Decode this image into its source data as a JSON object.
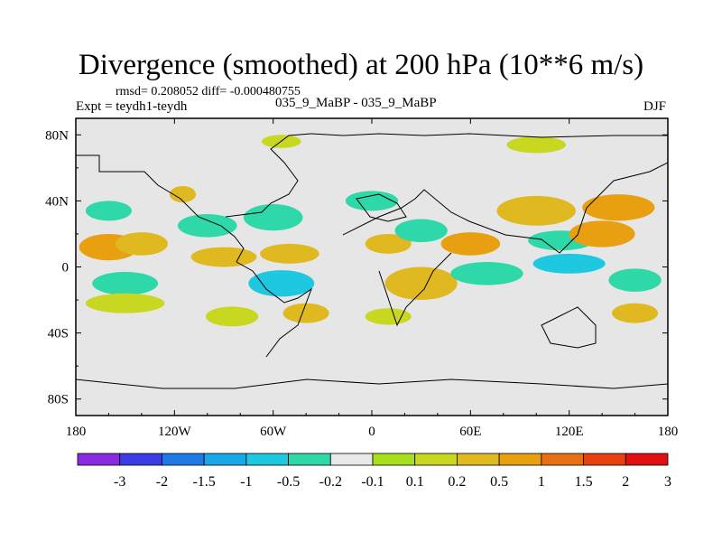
{
  "title": "Divergence (smoothed) at 200 hPa (10**6 m/s)",
  "stats": "rmsd= 0.208052 diff= -0.000480755",
  "expt": "Expt = teydh1-teydh",
  "cases": "035_9_MaBP - 035_9_MaBP",
  "season": "DJF",
  "chart_data": {
    "type": "heatmap",
    "title": "Divergence (smoothed) at 200 hPa (10**6 m/s)",
    "xlabel": "",
    "ylabel": "",
    "xlim": [
      -180,
      180
    ],
    "ylim": [
      -90,
      90
    ],
    "x_ticks": [
      {
        "value": -180,
        "label": "180"
      },
      {
        "value": -120,
        "label": "120W"
      },
      {
        "value": -60,
        "label": "60W"
      },
      {
        "value": 0,
        "label": "0"
      },
      {
        "value": 60,
        "label": "60E"
      },
      {
        "value": 120,
        "label": "120E"
      },
      {
        "value": 180,
        "label": "180"
      }
    ],
    "y_ticks": [
      {
        "value": 80,
        "label": "80N"
      },
      {
        "value": 40,
        "label": "40N"
      },
      {
        "value": 0,
        "label": "0"
      },
      {
        "value": -40,
        "label": "40S"
      },
      {
        "value": -80,
        "label": "80S"
      }
    ],
    "colorbar": {
      "colors": [
        "#8a2be2",
        "#3b3be8",
        "#1f7ae8",
        "#18a8e8",
        "#1ec8e0",
        "#2ed8a8",
        "#e8e8e8",
        "#a8e020",
        "#c8d820",
        "#e0b820",
        "#e8a010",
        "#e87010",
        "#e84010",
        "#e01010"
      ],
      "levels": [
        "-3",
        "-2",
        "-1.5",
        "-1",
        "-0.5",
        "-0.2",
        "-0.1",
        "0.1",
        "0.2",
        "0.5",
        "1",
        "1.5",
        "2",
        "3"
      ]
    },
    "features": [
      {
        "lon": -160,
        "lat": 34,
        "rlon": 14,
        "rlat": 6,
        "value": -0.5
      },
      {
        "lon": -160,
        "lat": 12,
        "rlon": 18,
        "rlat": 8,
        "value": 0.7
      },
      {
        "lon": -140,
        "lat": 14,
        "rlon": 16,
        "rlat": 7,
        "value": 0.4
      },
      {
        "lon": -150,
        "lat": -10,
        "rlon": 20,
        "rlat": 7,
        "value": -0.5
      },
      {
        "lon": -150,
        "lat": -22,
        "rlon": 24,
        "rlat": 6,
        "value": 0.15
      },
      {
        "lon": -115,
        "lat": 44,
        "rlon": 8,
        "rlat": 5,
        "value": 0.2
      },
      {
        "lon": -100,
        "lat": 25,
        "rlon": 18,
        "rlat": 7,
        "value": -0.4
      },
      {
        "lon": -90,
        "lat": 6,
        "rlon": 20,
        "rlat": 6,
        "value": 0.3
      },
      {
        "lon": -85,
        "lat": -30,
        "rlon": 16,
        "rlat": 6,
        "value": 0.15
      },
      {
        "lon": -60,
        "lat": 30,
        "rlon": 18,
        "rlat": 8,
        "value": -0.4
      },
      {
        "lon": -50,
        "lat": 8,
        "rlon": 18,
        "rlat": 6,
        "value": 0.3
      },
      {
        "lon": -55,
        "lat": -10,
        "rlon": 20,
        "rlat": 8,
        "value": -0.6
      },
      {
        "lon": -40,
        "lat": -28,
        "rlon": 14,
        "rlat": 6,
        "value": 0.2
      },
      {
        "lon": -55,
        "lat": 76,
        "rlon": 12,
        "rlat": 4,
        "value": 0.15
      },
      {
        "lon": 0,
        "lat": 40,
        "rlon": 16,
        "rlat": 6,
        "value": -0.3
      },
      {
        "lon": 10,
        "lat": 14,
        "rlon": 14,
        "rlat": 6,
        "value": 0.4
      },
      {
        "lon": 30,
        "lat": 22,
        "rlon": 16,
        "rlat": 7,
        "value": -0.5
      },
      {
        "lon": 30,
        "lat": -10,
        "rlon": 22,
        "rlat": 10,
        "value": 0.2
      },
      {
        "lon": 10,
        "lat": -30,
        "rlon": 14,
        "rlat": 5,
        "value": 0.15
      },
      {
        "lon": 60,
        "lat": 14,
        "rlon": 18,
        "rlat": 7,
        "value": 0.5
      },
      {
        "lon": 70,
        "lat": -4,
        "rlon": 22,
        "rlat": 7,
        "value": -0.5
      },
      {
        "lon": 100,
        "lat": 34,
        "rlon": 24,
        "rlat": 9,
        "value": 0.3
      },
      {
        "lon": 115,
        "lat": 16,
        "rlon": 20,
        "rlat": 6,
        "value": -0.4
      },
      {
        "lon": 120,
        "lat": 2,
        "rlon": 22,
        "rlat": 6,
        "value": -0.9
      },
      {
        "lon": 140,
        "lat": 20,
        "rlon": 20,
        "rlat": 8,
        "value": 0.8
      },
      {
        "lon": 150,
        "lat": 36,
        "rlon": 22,
        "rlat": 8,
        "value": 0.5
      },
      {
        "lon": 160,
        "lat": -8,
        "rlon": 16,
        "rlat": 7,
        "value": -0.5
      },
      {
        "lon": 160,
        "lat": -28,
        "rlon": 14,
        "rlat": 6,
        "value": 0.2
      },
      {
        "lon": 100,
        "lat": 74,
        "rlon": 18,
        "rlat": 5,
        "value": 0.15
      }
    ]
  }
}
